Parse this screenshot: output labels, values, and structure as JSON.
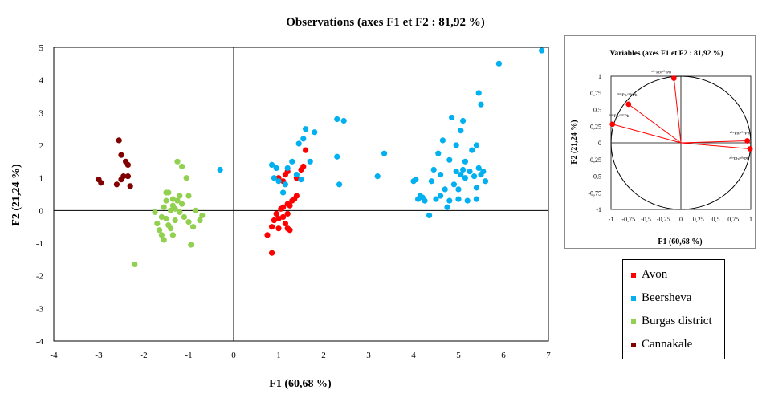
{
  "chart_data": [
    {
      "type": "scatter",
      "title": "Observations (axes F1 et F2 : 81,92 %)",
      "xlabel": "F1 (60,68 %)",
      "ylabel": "F2 (21,24 %)",
      "xlim": [
        -4,
        7
      ],
      "ylim": [
        -4,
        5
      ],
      "xticks": [
        -4,
        -3,
        -2,
        -1,
        0,
        1,
        2,
        3,
        4,
        5,
        6,
        7
      ],
      "yticks": [
        -4,
        -3,
        -2,
        -1,
        0,
        1,
        2,
        3,
        4,
        5
      ],
      "grid": false,
      "legend_position": "right",
      "series": [
        {
          "name": "Avon",
          "color": "#ff0000",
          "points": [
            [
              0.75,
              -0.75
            ],
            [
              0.85,
              -1.3
            ],
            [
              0.85,
              -0.5
            ],
            [
              0.9,
              -0.3
            ],
            [
              0.95,
              -0.1
            ],
            [
              1.0,
              -0.55
            ],
            [
              1.0,
              -0.25
            ],
            [
              1.05,
              0.05
            ],
            [
              1.1,
              0.1
            ],
            [
              1.1,
              -0.2
            ],
            [
              1.15,
              -0.4
            ],
            [
              1.2,
              -0.1
            ],
            [
              1.2,
              0.2
            ],
            [
              1.25,
              0.15
            ],
            [
              1.3,
              0.3
            ],
            [
              1.35,
              0.35
            ],
            [
              1.4,
              0.45
            ],
            [
              1.25,
              -0.6
            ],
            [
              1.1,
              0.9
            ],
            [
              1.15,
              1.1
            ],
            [
              1.2,
              1.2
            ],
            [
              1.0,
              1.0
            ],
            [
              1.4,
              1.0
            ],
            [
              1.5,
              1.25
            ],
            [
              1.55,
              1.35
            ],
            [
              1.6,
              1.85
            ],
            [
              1.2,
              -0.55
            ]
          ]
        },
        {
          "name": "Beersheva",
          "color": "#00b0f0",
          "points": [
            [
              -0.3,
              1.25
            ],
            [
              0.85,
              1.4
            ],
            [
              0.9,
              1.0
            ],
            [
              0.95,
              1.3
            ],
            [
              1.0,
              0.9
            ],
            [
              1.1,
              0.55
            ],
            [
              1.15,
              0.8
            ],
            [
              1.2,
              1.3
            ],
            [
              1.3,
              1.5
            ],
            [
              1.4,
              1.1
            ],
            [
              1.5,
              0.95
            ],
            [
              1.55,
              2.2
            ],
            [
              1.6,
              2.5
            ],
            [
              1.8,
              2.4
            ],
            [
              1.7,
              1.5
            ],
            [
              1.45,
              2.05
            ],
            [
              2.3,
              2.8
            ],
            [
              2.3,
              1.65
            ],
            [
              2.35,
              0.8
            ],
            [
              2.45,
              2.75
            ],
            [
              3.2,
              1.05
            ],
            [
              3.35,
              1.75
            ],
            [
              4.0,
              0.9
            ],
            [
              4.05,
              0.95
            ],
            [
              4.1,
              0.35
            ],
            [
              4.15,
              0.45
            ],
            [
              4.2,
              0.4
            ],
            [
              4.25,
              0.3
            ],
            [
              4.35,
              -0.15
            ],
            [
              4.4,
              0.9
            ],
            [
              4.45,
              1.25
            ],
            [
              4.5,
              0.35
            ],
            [
              4.55,
              1.75
            ],
            [
              4.6,
              0.45
            ],
            [
              4.6,
              1.1
            ],
            [
              4.65,
              2.15
            ],
            [
              4.7,
              0.65
            ],
            [
              4.75,
              0.1
            ],
            [
              4.8,
              0.3
            ],
            [
              4.8,
              1.55
            ],
            [
              4.85,
              2.85
            ],
            [
              4.9,
              0.8
            ],
            [
              4.95,
              2.0
            ],
            [
              4.95,
              1.2
            ],
            [
              5.0,
              0.65
            ],
            [
              5.05,
              1.1
            ],
            [
              5.05,
              2.45
            ],
            [
              5.1,
              1.25
            ],
            [
              5.1,
              2.75
            ],
            [
              5.15,
              1.0
            ],
            [
              5.15,
              1.5
            ],
            [
              5.2,
              0.3
            ],
            [
              5.25,
              1.2
            ],
            [
              5.3,
              1.85
            ],
            [
              5.35,
              1.05
            ],
            [
              5.4,
              0.7
            ],
            [
              5.4,
              2.0
            ],
            [
              5.45,
              1.3
            ],
            [
              5.5,
              1.1
            ],
            [
              5.45,
              3.6
            ],
            [
              5.5,
              3.25
            ],
            [
              5.55,
              1.2
            ],
            [
              5.6,
              0.9
            ],
            [
              5.9,
              4.5
            ],
            [
              6.85,
              4.9
            ],
            [
              5.0,
              0.35
            ],
            [
              5.4,
              0.35
            ]
          ]
        },
        {
          "name": "Burgas district",
          "color": "#92d050",
          "points": [
            [
              -2.2,
              -1.65
            ],
            [
              -1.75,
              -0.05
            ],
            [
              -1.7,
              -0.4
            ],
            [
              -1.65,
              -0.6
            ],
            [
              -1.6,
              -0.2
            ],
            [
              -1.55,
              0.1
            ],
            [
              -1.55,
              -0.9
            ],
            [
              -1.5,
              -0.25
            ],
            [
              -1.5,
              0.3
            ],
            [
              -1.45,
              0.55
            ],
            [
              -1.45,
              -0.45
            ],
            [
              -1.4,
              0.0
            ],
            [
              -1.4,
              -0.55
            ],
            [
              -1.35,
              0.15
            ],
            [
              -1.35,
              -0.75
            ],
            [
              -1.3,
              0.05
            ],
            [
              -1.3,
              -0.3
            ],
            [
              -1.25,
              1.5
            ],
            [
              -1.25,
              0.3
            ],
            [
              -1.2,
              -0.05
            ],
            [
              -1.2,
              0.45
            ],
            [
              -1.15,
              1.35
            ],
            [
              -1.15,
              0.2
            ],
            [
              -1.1,
              -0.2
            ],
            [
              -1.05,
              1.0
            ],
            [
              -1.0,
              0.45
            ],
            [
              -1.0,
              -0.35
            ],
            [
              -0.95,
              -1.05
            ],
            [
              -0.9,
              -0.5
            ],
            [
              -0.85,
              0.0
            ],
            [
              -0.75,
              -0.3
            ],
            [
              -0.7,
              -0.15
            ],
            [
              -1.5,
              0.55
            ],
            [
              -1.35,
              0.35
            ],
            [
              -1.6,
              -0.75
            ]
          ]
        },
        {
          "name": "Cannakale",
          "color": "#800000",
          "points": [
            [
              -3.0,
              0.95
            ],
            [
              -2.95,
              0.85
            ],
            [
              -2.6,
              0.8
            ],
            [
              -2.55,
              2.15
            ],
            [
              -2.5,
              1.7
            ],
            [
              -2.5,
              0.95
            ],
            [
              -2.45,
              1.05
            ],
            [
              -2.4,
              1.5
            ],
            [
              -2.35,
              1.05
            ],
            [
              -2.35,
              1.4
            ],
            [
              -2.3,
              0.75
            ]
          ]
        }
      ]
    },
    {
      "type": "scatter",
      "title": "Variables (axes F1 et F2 : 81,92 %)",
      "xlabel": "F1 (60,68 %)",
      "ylabel": "F2 (21,24 %)",
      "xlim": [
        -1,
        1
      ],
      "ylim": [
        -1,
        1
      ],
      "xticks": [
        "-1",
        "-0,75",
        "-0,5",
        "-0,25",
        "0",
        "0,25",
        "0,5",
        "0,75",
        "1"
      ],
      "yticks": [
        "-1",
        "-0,75",
        "-0,5",
        "-0,25",
        "0",
        "0,25",
        "0,5",
        "0,75",
        "1"
      ],
      "circle": true,
      "vector_color": "#ff0000",
      "vectors": [
        {
          "label": "²⁰⁷Pb/²⁰⁴Pb",
          "x": -0.1,
          "y": 0.97
        },
        {
          "label": "²⁰⁶Pb/²⁰⁴Pb",
          "x": -0.75,
          "y": 0.58
        },
        {
          "label": "²⁰⁶Pb/²⁰⁷Pb",
          "x": -0.98,
          "y": 0.28
        },
        {
          "label": "²⁰⁸Pb/²⁰⁶Pb",
          "x": 0.95,
          "y": 0.03
        },
        {
          "label": "²⁰⁷Pb/²⁰⁸Pb",
          "x": 0.99,
          "y": -0.09
        }
      ]
    }
  ],
  "legend": [
    {
      "label": "Avon",
      "color": "#ff0000"
    },
    {
      "label": "Beersheva",
      "color": "#00b0f0"
    },
    {
      "label": "Burgas district",
      "color": "#92d050"
    },
    {
      "label": "Cannakale",
      "color": "#800000"
    }
  ]
}
